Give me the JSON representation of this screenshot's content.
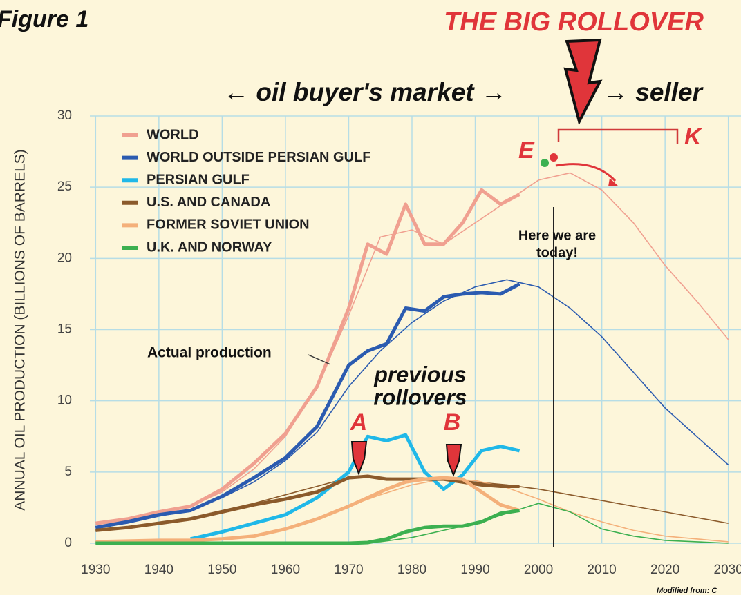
{
  "chart_data": {
    "type": "line",
    "title": "THE BIG ROLLOVER",
    "figure_label": "Figure 1",
    "ylabel": "ANNUAL OIL PRODUCTION (BILLIONS OF BARRELS)",
    "xlim": [
      1928,
      2032
    ],
    "ylim": [
      0,
      30
    ],
    "xticks": [
      1930,
      1940,
      1950,
      1960,
      1970,
      1980,
      1990,
      2000,
      2010,
      2020,
      2030
    ],
    "yticks": [
      0,
      5,
      10,
      15,
      20,
      25,
      30
    ],
    "grid": true,
    "legend": "upper left",
    "series": [
      {
        "name": "WORLD",
        "color": "#f0a090",
        "x": [
          1930,
          1935,
          1940,
          1945,
          1950,
          1955,
          1960,
          1965,
          1970,
          1973,
          1976,
          1979,
          1982,
          1985,
          1988,
          1991,
          1994,
          1997
        ],
        "values": [
          1.4,
          1.7,
          2.2,
          2.6,
          3.8,
          5.6,
          7.7,
          11.0,
          16.5,
          21.0,
          20.3,
          23.8,
          21.0,
          21.0,
          22.5,
          24.8,
          23.8,
          24.5
        ]
      },
      {
        "name": "WORLD OUTSIDE PERSIAN GULF",
        "color": "#2b5bb0",
        "x": [
          1930,
          1935,
          1940,
          1945,
          1950,
          1955,
          1960,
          1965,
          1970,
          1973,
          1976,
          1979,
          1982,
          1985,
          1988,
          1991,
          1994,
          1997
        ],
        "values": [
          1.1,
          1.5,
          2.0,
          2.3,
          3.3,
          4.6,
          6.0,
          8.2,
          12.5,
          13.5,
          14.0,
          16.5,
          16.3,
          17.3,
          17.5,
          17.6,
          17.5,
          18.2
        ]
      },
      {
        "name": "PERSIAN GULF",
        "color": "#20b8e8",
        "x": [
          1930,
          1935,
          1940,
          1945,
          1950,
          1955,
          1960,
          1965,
          1970,
          1973,
          1976,
          1979,
          1982,
          1985,
          1988,
          1991,
          1994,
          1997
        ],
        "values": [
          null,
          null,
          null,
          0.3,
          0.8,
          1.4,
          2.0,
          3.2,
          5.0,
          7.5,
          7.2,
          7.6,
          5.0,
          3.8,
          4.8,
          6.5,
          6.8,
          6.5
        ]
      },
      {
        "name": "U.S. AND CANADA",
        "color": "#8b5a2b",
        "x": [
          1930,
          1935,
          1940,
          1945,
          1950,
          1955,
          1960,
          1965,
          1970,
          1973,
          1976,
          1979,
          1982,
          1985,
          1988,
          1991,
          1994,
          1997
        ],
        "values": [
          0.9,
          1.1,
          1.4,
          1.7,
          2.2,
          2.7,
          3.1,
          3.6,
          4.6,
          4.7,
          4.5,
          4.5,
          4.5,
          4.5,
          4.3,
          4.1,
          4.0,
          4.0
        ]
      },
      {
        "name": "FORMER SOVIET UNION",
        "color": "#f4b07a",
        "x": [
          1930,
          1935,
          1940,
          1945,
          1950,
          1955,
          1960,
          1965,
          1970,
          1973,
          1976,
          1979,
          1982,
          1985,
          1988,
          1991,
          1994,
          1997
        ],
        "values": [
          0.1,
          0.15,
          0.2,
          0.2,
          0.3,
          0.5,
          1.0,
          1.7,
          2.6,
          3.2,
          3.8,
          4.3,
          4.5,
          4.6,
          4.5,
          3.6,
          2.7,
          2.3
        ]
      },
      {
        "name": "U.K. AND NORWAY",
        "color": "#3cb050",
        "x": [
          1930,
          1935,
          1940,
          1945,
          1950,
          1955,
          1960,
          1965,
          1970,
          1973,
          1976,
          1979,
          1982,
          1985,
          1988,
          1991,
          1994,
          1997
        ],
        "values": [
          0,
          0,
          0,
          0,
          0,
          0,
          0,
          0,
          0,
          0.05,
          0.3,
          0.8,
          1.1,
          1.2,
          1.2,
          1.5,
          2.1,
          2.3
        ]
      }
    ],
    "model_curves": [
      {
        "color": "#f0a090",
        "x": [
          1930,
          1935,
          1940,
          1945,
          1950,
          1955,
          1960,
          1965,
          1970,
          1975,
          1980,
          1985,
          1990,
          1995,
          2000,
          2005,
          2010,
          2015,
          2020,
          2025,
          2030
        ],
        "values": [
          1.3,
          1.6,
          2.0,
          2.6,
          3.6,
          5.2,
          7.5,
          11,
          16,
          21.5,
          22,
          21,
          22.5,
          24,
          25.5,
          26,
          24.8,
          22.5,
          19.5,
          17,
          14.3
        ]
      },
      {
        "color": "#2b5bb0",
        "x": [
          1930,
          1935,
          1940,
          1945,
          1950,
          1955,
          1960,
          1965,
          1970,
          1975,
          1980,
          1985,
          1990,
          1995,
          2000,
          2005,
          2010,
          2015,
          2020,
          2025,
          2030
        ],
        "values": [
          1.1,
          1.4,
          1.9,
          2.3,
          3.2,
          4.3,
          5.8,
          7.8,
          11,
          13.5,
          15.5,
          17,
          18,
          18.5,
          18,
          16.5,
          14.5,
          12,
          9.5,
          7.5,
          5.5
        ]
      },
      {
        "color": "#8b5a2b",
        "x": [
          1930,
          1935,
          1940,
          1945,
          1950,
          1955,
          1960,
          1965,
          1970,
          1975,
          1980,
          1985,
          1990,
          1995,
          2000,
          2005,
          2010,
          2015,
          2020,
          2025,
          2030
        ],
        "values": [
          0.9,
          1.1,
          1.4,
          1.8,
          2.3,
          2.8,
          3.4,
          4.0,
          4.6,
          4.6,
          4.5,
          4.5,
          4.3,
          4.1,
          3.8,
          3.4,
          3.0,
          2.6,
          2.2,
          1.8,
          1.4
        ]
      },
      {
        "color": "#f4b07a",
        "x": [
          1930,
          1935,
          1940,
          1945,
          1950,
          1955,
          1960,
          1965,
          1970,
          1975,
          1980,
          1985,
          1990,
          1995,
          2000,
          2005,
          2010,
          2015,
          2020,
          2025,
          2030
        ],
        "values": [
          0.1,
          0.1,
          0.2,
          0.2,
          0.3,
          0.5,
          1.0,
          1.7,
          2.6,
          3.4,
          4.1,
          4.5,
          4.4,
          3.9,
          3.1,
          2.2,
          1.5,
          0.9,
          0.5,
          0.3,
          0.1
        ]
      },
      {
        "color": "#3cb050",
        "x": [
          1930,
          1935,
          1940,
          1945,
          1950,
          1955,
          1960,
          1965,
          1970,
          1975,
          1980,
          1985,
          1990,
          1995,
          2000,
          2005,
          2010,
          2015,
          2020,
          2025,
          2030
        ],
        "values": [
          0,
          0,
          0,
          0,
          0,
          0,
          0,
          0,
          0,
          0.1,
          0.4,
          0.9,
          1.4,
          2.1,
          2.8,
          2.2,
          1.0,
          0.5,
          0.2,
          0.1,
          0
        ]
      }
    ],
    "annotations": {
      "market_left": "← oil buyer's market →",
      "market_right": "→ seller",
      "e": "E",
      "k": "K",
      "a": "A",
      "b": "B",
      "today": [
        "Here we are",
        "today!"
      ],
      "actual": "Actual production",
      "previous": [
        "previous",
        "rollovers"
      ],
      "source": "Modified from: C"
    }
  }
}
